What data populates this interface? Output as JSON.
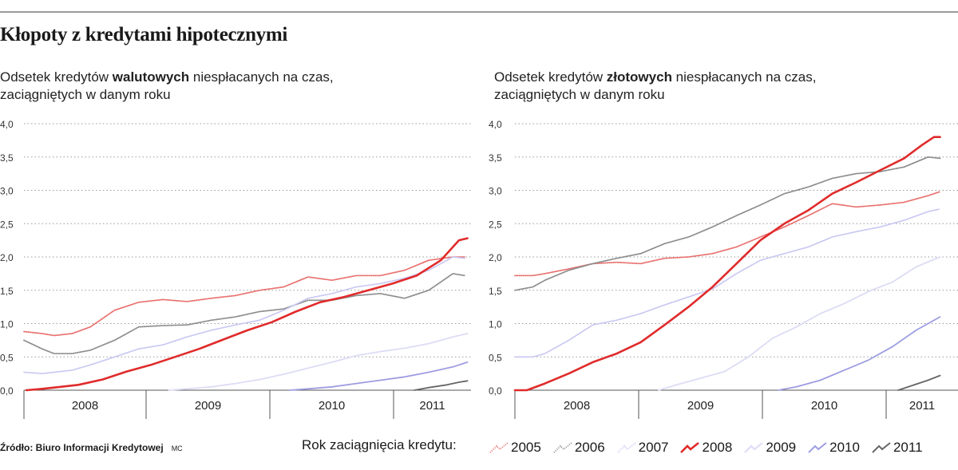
{
  "title": "Kłopoty z kredytami hipotecznymi",
  "source": "Źródło: Biuro Informacji Kredytowej",
  "author": "MC",
  "legend_title": "Rok zaciągnięcia kredytu:",
  "legend": [
    {
      "name": "2005",
      "color": "#e8706e",
      "style": "dotted"
    },
    {
      "name": "2006",
      "color": "#8c8c8c",
      "style": "dotted"
    },
    {
      "name": "2007",
      "color": "#c9c8f2",
      "style": "dotted"
    },
    {
      "name": "2008",
      "color": "#e02b2b",
      "style": "solid"
    },
    {
      "name": "2009",
      "color": "#dcdcf5",
      "style": "solid"
    },
    {
      "name": "2010",
      "color": "#9d9de2",
      "style": "solid"
    },
    {
      "name": "2011",
      "color": "#666666",
      "style": "solid"
    }
  ],
  "chart_data": [
    {
      "type": "line",
      "subtitle": {
        "pre": "Odsetek kredytów ",
        "bold": "walutowych",
        "post": " niespłacanych na czas,",
        "line2": "zaciągniętych w danym roku"
      },
      "y_ticks": [
        "4,0",
        "3,5",
        "3,0",
        "2,5",
        "2,0",
        "1,5",
        "1,0",
        "0,5",
        "0,0"
      ],
      "ylim": [
        0,
        4
      ],
      "x_labels": [
        "2008",
        "2009",
        "2010",
        "2011"
      ],
      "xlim": [
        2007.75,
        2011.45
      ],
      "grid": true,
      "series": [
        {
          "name": "2005",
          "x": [
            2007.75,
            2007.9,
            2008.0,
            2008.15,
            2008.3,
            2008.5,
            2008.7,
            2008.9,
            2009.1,
            2009.3,
            2009.5,
            2009.7,
            2009.9,
            2010.1,
            2010.3,
            2010.5,
            2010.7,
            2010.9,
            2011.1,
            2011.3,
            2011.4
          ],
          "values": [
            0.88,
            0.85,
            0.82,
            0.85,
            0.95,
            1.2,
            1.32,
            1.36,
            1.33,
            1.38,
            1.42,
            1.5,
            1.55,
            1.7,
            1.65,
            1.72,
            1.72,
            1.8,
            1.95,
            2.0,
            2.0
          ]
        },
        {
          "name": "2006",
          "x": [
            2007.75,
            2007.9,
            2008.0,
            2008.15,
            2008.3,
            2008.5,
            2008.7,
            2008.9,
            2009.1,
            2009.3,
            2009.5,
            2009.7,
            2009.9,
            2010.1,
            2010.3,
            2010.5,
            2010.7,
            2010.9,
            2011.1,
            2011.3,
            2011.4
          ],
          "values": [
            0.75,
            0.62,
            0.55,
            0.55,
            0.6,
            0.75,
            0.95,
            0.97,
            0.98,
            1.05,
            1.1,
            1.18,
            1.22,
            1.35,
            1.35,
            1.42,
            1.45,
            1.38,
            1.5,
            1.75,
            1.72
          ]
        },
        {
          "name": "2007",
          "x": [
            2007.75,
            2007.9,
            2008.0,
            2008.15,
            2008.3,
            2008.5,
            2008.7,
            2008.9,
            2009.1,
            2009.3,
            2009.5,
            2009.7,
            2009.9,
            2010.1,
            2010.3,
            2010.5,
            2010.7,
            2010.9,
            2011.1,
            2011.3,
            2011.4
          ],
          "values": [
            0.27,
            0.25,
            0.27,
            0.3,
            0.38,
            0.5,
            0.62,
            0.68,
            0.8,
            0.9,
            0.98,
            1.05,
            1.2,
            1.38,
            1.45,
            1.55,
            1.6,
            1.68,
            1.8,
            2.0,
            1.98
          ]
        },
        {
          "name": "2008",
          "x": [
            2007.77,
            2007.9,
            2008.0,
            2008.2,
            2008.4,
            2008.6,
            2008.8,
            2009.0,
            2009.2,
            2009.4,
            2009.6,
            2009.8,
            2010.0,
            2010.2,
            2010.4,
            2010.6,
            2010.8,
            2011.0,
            2011.2,
            2011.35,
            2011.42
          ],
          "values": [
            0.0,
            0.02,
            0.04,
            0.08,
            0.16,
            0.28,
            0.38,
            0.5,
            0.62,
            0.76,
            0.9,
            1.02,
            1.18,
            1.32,
            1.4,
            1.5,
            1.6,
            1.72,
            1.95,
            2.25,
            2.28
          ]
        },
        {
          "name": "2009",
          "x": [
            2008.95,
            2009.1,
            2009.3,
            2009.5,
            2009.7,
            2009.9,
            2010.1,
            2010.3,
            2010.5,
            2010.7,
            2010.9,
            2011.1,
            2011.3,
            2011.42
          ],
          "values": [
            0.0,
            0.02,
            0.05,
            0.1,
            0.16,
            0.24,
            0.33,
            0.42,
            0.52,
            0.58,
            0.63,
            0.7,
            0.8,
            0.85
          ]
        },
        {
          "name": "2010",
          "x": [
            2009.95,
            2010.1,
            2010.3,
            2010.5,
            2010.7,
            2010.9,
            2011.1,
            2011.3,
            2011.42
          ],
          "values": [
            0.0,
            0.02,
            0.05,
            0.1,
            0.15,
            0.2,
            0.27,
            0.35,
            0.42
          ]
        },
        {
          "name": "2011",
          "x": [
            2010.98,
            2011.1,
            2011.25,
            2011.35,
            2011.42
          ],
          "values": [
            0.0,
            0.04,
            0.08,
            0.12,
            0.14
          ]
        }
      ]
    },
    {
      "type": "line",
      "subtitle": {
        "pre": "Odsetek kredytów ",
        "bold": "złotowych",
        "post": " niespłacanych na czas,",
        "line2": "zaciągniętych w danym roku"
      },
      "y_ticks": [
        "4,0",
        "3,5",
        "3,0",
        "2,5",
        "2,0",
        "1,5",
        "1,0",
        "0,5",
        "0,0"
      ],
      "ylim": [
        0,
        4
      ],
      "x_labels": [
        "2008",
        "2009",
        "2010",
        "2011"
      ],
      "xlim": [
        2007.75,
        2011.45
      ],
      "grid": true,
      "series": [
        {
          "name": "2005",
          "x": [
            2007.75,
            2007.9,
            2008.0,
            2008.2,
            2008.4,
            2008.6,
            2008.8,
            2009.0,
            2009.2,
            2009.4,
            2009.6,
            2009.8,
            2010.0,
            2010.2,
            2010.4,
            2010.6,
            2010.8,
            2011.0,
            2011.2,
            2011.3
          ],
          "values": [
            1.72,
            1.72,
            1.75,
            1.82,
            1.9,
            1.92,
            1.9,
            1.98,
            2.0,
            2.05,
            2.15,
            2.3,
            2.45,
            2.62,
            2.8,
            2.75,
            2.78,
            2.82,
            2.92,
            2.98
          ]
        },
        {
          "name": "2006",
          "x": [
            2007.75,
            2007.9,
            2008.0,
            2008.2,
            2008.4,
            2008.6,
            2008.8,
            2009.0,
            2009.2,
            2009.4,
            2009.6,
            2009.8,
            2010.0,
            2010.2,
            2010.4,
            2010.6,
            2010.8,
            2011.0,
            2011.2,
            2011.3
          ],
          "values": [
            1.5,
            1.55,
            1.65,
            1.8,
            1.9,
            1.98,
            2.05,
            2.2,
            2.3,
            2.45,
            2.62,
            2.78,
            2.95,
            3.05,
            3.18,
            3.25,
            3.28,
            3.35,
            3.5,
            3.48
          ]
        },
        {
          "name": "2007",
          "x": [
            2007.75,
            2007.9,
            2008.0,
            2008.2,
            2008.4,
            2008.6,
            2008.8,
            2009.0,
            2009.2,
            2009.4,
            2009.6,
            2009.8,
            2010.0,
            2010.2,
            2010.4,
            2010.6,
            2010.8,
            2011.0,
            2011.2,
            2011.3
          ],
          "values": [
            0.5,
            0.5,
            0.55,
            0.75,
            0.98,
            1.05,
            1.15,
            1.28,
            1.4,
            1.52,
            1.75,
            1.95,
            2.05,
            2.15,
            2.3,
            2.38,
            2.45,
            2.55,
            2.68,
            2.72
          ]
        },
        {
          "name": "2008",
          "x": [
            2007.75,
            2007.85,
            2008.0,
            2008.2,
            2008.4,
            2008.6,
            2008.8,
            2009.0,
            2009.2,
            2009.4,
            2009.6,
            2009.8,
            2010.0,
            2010.2,
            2010.4,
            2010.6,
            2010.8,
            2011.0,
            2011.15,
            2011.25,
            2011.3
          ],
          "values": [
            0.0,
            0.0,
            0.1,
            0.25,
            0.42,
            0.55,
            0.72,
            0.98,
            1.25,
            1.55,
            1.9,
            2.25,
            2.5,
            2.7,
            2.95,
            3.12,
            3.3,
            3.48,
            3.68,
            3.8,
            3.8
          ]
        },
        {
          "name": "2009",
          "x": [
            2008.95,
            2009.1,
            2009.3,
            2009.5,
            2009.7,
            2009.9,
            2010.1,
            2010.3,
            2010.5,
            2010.7,
            2010.9,
            2011.1,
            2011.3
          ],
          "values": [
            0.0,
            0.08,
            0.18,
            0.28,
            0.5,
            0.78,
            0.95,
            1.15,
            1.3,
            1.48,
            1.62,
            1.85,
            2.0
          ]
        },
        {
          "name": "2010",
          "x": [
            2009.95,
            2010.1,
            2010.3,
            2010.5,
            2010.7,
            2010.9,
            2011.1,
            2011.3
          ],
          "values": [
            0.0,
            0.05,
            0.15,
            0.3,
            0.45,
            0.65,
            0.9,
            1.1
          ]
        },
        {
          "name": "2011",
          "x": [
            2010.95,
            2011.05,
            2011.2,
            2011.3
          ],
          "values": [
            0.0,
            0.06,
            0.15,
            0.22
          ]
        }
      ]
    }
  ]
}
